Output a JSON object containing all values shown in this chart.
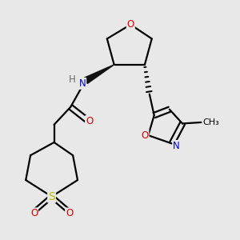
{
  "background_color": "#e8e8e8",
  "bond_color": "#000000",
  "bond_width": 1.6,
  "atom_colors": {
    "O": "#dd0000",
    "N": "#0000cc",
    "S": "#bbbb00",
    "H": "#666666",
    "C": "#000000"
  },
  "font_size": 8.5,
  "figsize": [
    3.0,
    3.0
  ],
  "dpi": 100,
  "xlim": [
    0,
    10
  ],
  "ylim": [
    0,
    10
  ]
}
